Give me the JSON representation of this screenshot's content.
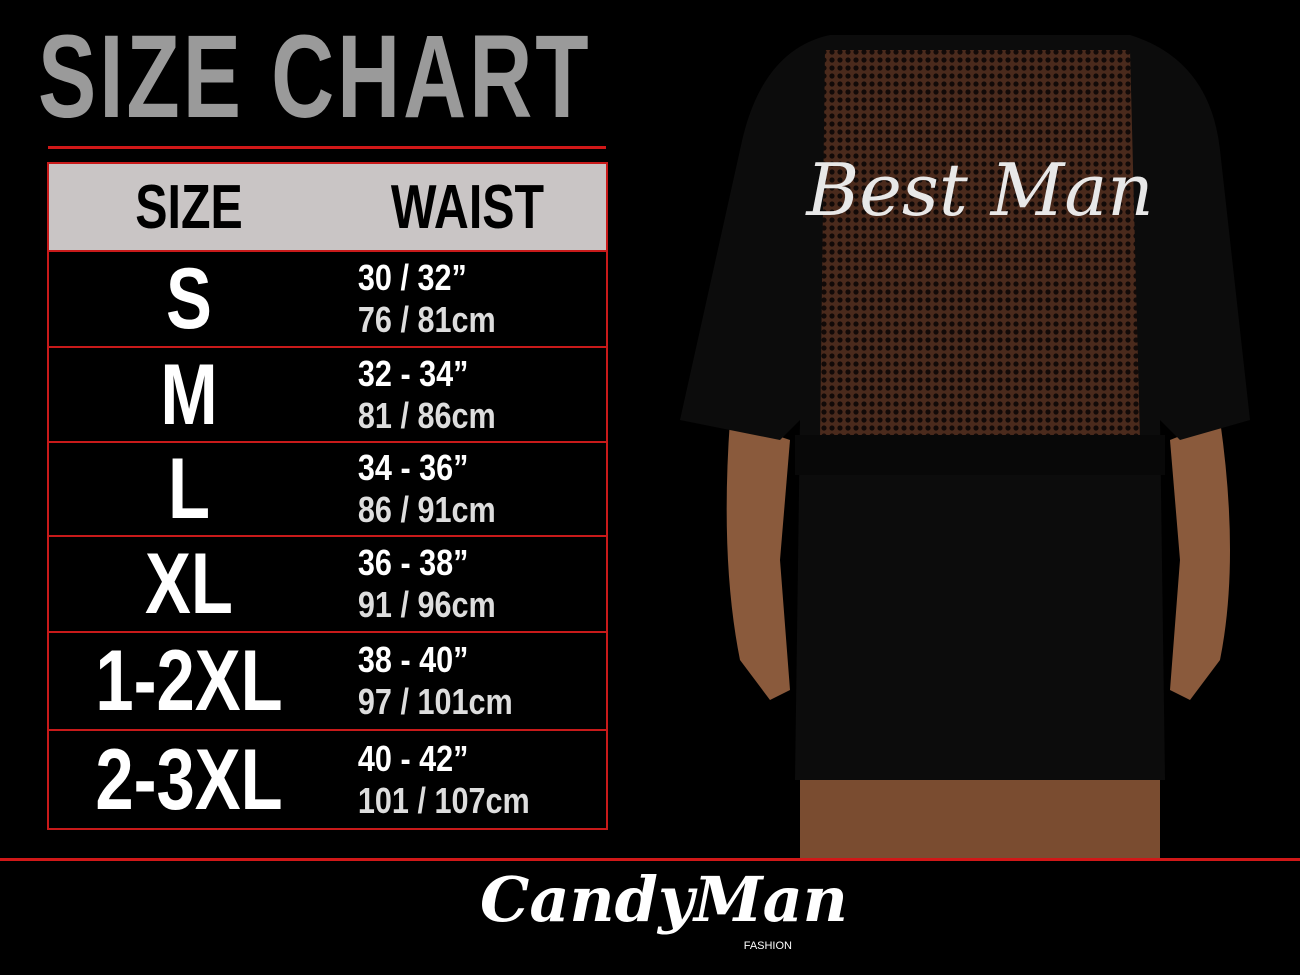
{
  "title": "SIZE CHART",
  "table": {
    "headers": [
      "SIZE",
      "WAIST"
    ],
    "rows": [
      {
        "size": "S",
        "inches": "30 / 32”",
        "cm": "76 / 81cm"
      },
      {
        "size": "M",
        "inches": "32 - 34”",
        "cm": "81 / 86cm"
      },
      {
        "size": "L",
        "inches": "34 - 36”",
        "cm": "86 / 91cm"
      },
      {
        "size": "XL",
        "inches": "36 - 38”",
        "cm": "91 / 96cm"
      },
      {
        "size": "1-2XL",
        "inches": "38 - 40”",
        "cm": "97 / 101cm"
      },
      {
        "size": "2-3XL",
        "inches": "40 - 42”",
        "cm": "101 / 107cm"
      }
    ]
  },
  "product": {
    "print_text": "Best Man"
  },
  "logo": {
    "brand": "CandyMan",
    "sub": "FASHION"
  },
  "colors": {
    "accent": "#d01818",
    "header_bg": "#c9c5c5",
    "title": "#9a9a9a",
    "background": "#000000"
  }
}
